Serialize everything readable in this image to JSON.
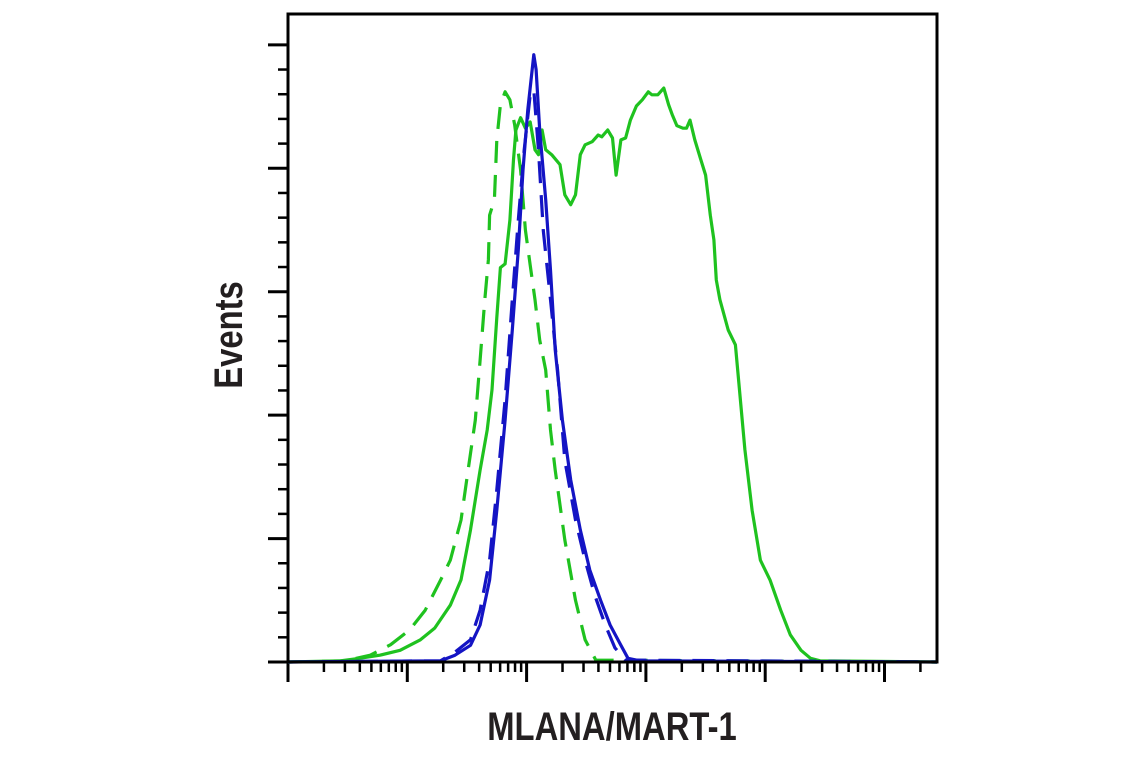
{
  "chart_data": {
    "type": "line",
    "title": "",
    "xlabel": "MLANA/MART-1",
    "ylabel": "Events",
    "x_scale": "log",
    "xlim": [
      0,
      5.44
    ],
    "ylim": [
      0,
      105
    ],
    "x_major_ticks": [
      0,
      1,
      2,
      3,
      4,
      5
    ],
    "y_major_ticks": [
      0,
      20,
      40,
      60,
      80,
      100
    ],
    "y_minor_step": 4,
    "tick_labels_shown": false,
    "grid": false,
    "legend": "none",
    "series": [
      {
        "color": "#1fc21f",
        "style": "solid",
        "x": [
          0,
          0.44,
          0.6,
          0.77,
          0.94,
          1.11,
          1.23,
          1.36,
          1.45,
          1.53,
          1.61,
          1.67,
          1.71,
          1.75,
          1.78,
          1.82,
          1.86,
          1.89,
          1.91,
          1.95,
          1.99,
          2.03,
          2.07,
          2.1,
          2.13,
          2.16,
          2.21,
          2.28,
          2.32,
          2.37,
          2.41,
          2.45,
          2.49,
          2.55,
          2.6,
          2.63,
          2.68,
          2.72,
          2.75,
          2.79,
          2.83,
          2.87,
          2.92,
          2.97,
          3.02,
          3.05,
          3.1,
          3.15,
          3.19,
          3.22,
          3.26,
          3.31,
          3.34,
          3.37,
          3.41,
          3.46,
          3.5,
          3.54,
          3.57,
          3.59,
          3.62,
          3.69,
          3.75,
          3.83,
          3.89,
          3.96,
          4.04,
          4.13,
          4.21,
          4.3,
          4.38,
          4.46,
          5.44
        ],
        "y": [
          0,
          0.2,
          0.6,
          1.1,
          1.9,
          3.6,
          5.5,
          9.2,
          13.3,
          21.4,
          31.1,
          37.6,
          44.1,
          55.8,
          63.9,
          64.5,
          71.6,
          81.4,
          86.2,
          88.2,
          86.5,
          87.5,
          83.0,
          82.2,
          86.2,
          83.0,
          82.2,
          80.6,
          75.7,
          74.1,
          75.7,
          82.2,
          83.8,
          84.3,
          85.4,
          85.1,
          86.2,
          84.9,
          78.9,
          84.6,
          84.9,
          87.8,
          90.1,
          91.1,
          92.4,
          91.9,
          91.9,
          93.0,
          90.3,
          88.7,
          86.9,
          86.5,
          86.5,
          87.8,
          84.6,
          81.4,
          78.9,
          72.4,
          68.4,
          61.9,
          58.7,
          53.8,
          51.4,
          34.4,
          24.6,
          16.5,
          13.3,
          8.4,
          4.4,
          1.9,
          0.6,
          0.2,
          0
        ]
      },
      {
        "color": "#1fc21f",
        "style": "dashed",
        "x": [
          0,
          0.48,
          0.69,
          0.86,
          1.02,
          1.15,
          1.28,
          1.36,
          1.45,
          1.51,
          1.57,
          1.61,
          1.65,
          1.68,
          1.69,
          1.73,
          1.75,
          1.78,
          1.82,
          1.86,
          1.9,
          1.95,
          1.99,
          2.03,
          2.07,
          2.11,
          2.16,
          2.2,
          2.24,
          2.32,
          2.41,
          2.49,
          2.58,
          5.44
        ],
        "y": [
          0,
          0.2,
          1.1,
          2.8,
          5.2,
          8.4,
          13.3,
          16.5,
          23.0,
          31.1,
          39.2,
          48.9,
          58.7,
          65.2,
          72.4,
          74.9,
          84.6,
          90.3,
          92.4,
          91.1,
          87.0,
          79.7,
          70.0,
          64.3,
          58.7,
          52.2,
          47.3,
          37.6,
          31.1,
          19.8,
          10.0,
          3.6,
          0.3,
          0
        ]
      },
      {
        "color": "#1414c4",
        "style": "solid",
        "x": [
          0,
          1.28,
          1.4,
          1.53,
          1.61,
          1.69,
          1.75,
          1.82,
          1.88,
          1.93,
          1.97,
          2.01,
          2.06,
          2.08,
          2.11,
          2.16,
          2.2,
          2.24,
          2.3,
          2.37,
          2.45,
          2.53,
          2.62,
          2.7,
          2.79,
          2.85,
          2.95,
          5.44
        ],
        "y": [
          0,
          0.2,
          1.1,
          2.7,
          6.0,
          13.3,
          24.6,
          39.2,
          53.8,
          66.8,
          79.7,
          89.5,
          98.4,
          96.0,
          86.2,
          74.9,
          63.5,
          50.6,
          39.2,
          29.5,
          21.4,
          14.9,
          10.0,
          6.0,
          2.7,
          0.6,
          0.2,
          0
        ]
      },
      {
        "color": "#1414c4",
        "style": "dashed",
        "x": [
          0,
          1.28,
          1.4,
          1.53,
          1.61,
          1.69,
          1.75,
          1.82,
          1.88,
          1.93,
          1.98,
          2.03,
          2.06,
          2.1,
          2.14,
          2.2,
          2.26,
          2.32,
          2.41,
          2.49,
          2.57,
          2.66,
          2.74,
          2.83,
          5.44
        ],
        "y": [
          0,
          0.2,
          1.6,
          3.6,
          8.4,
          16.5,
          27.9,
          42.5,
          58.7,
          71.6,
          83.0,
          91.9,
          92.7,
          82.9,
          69.9,
          58.7,
          47.3,
          32.7,
          23.0,
          16.5,
          10.9,
          6.0,
          2.3,
          0.3,
          0
        ]
      }
    ]
  }
}
